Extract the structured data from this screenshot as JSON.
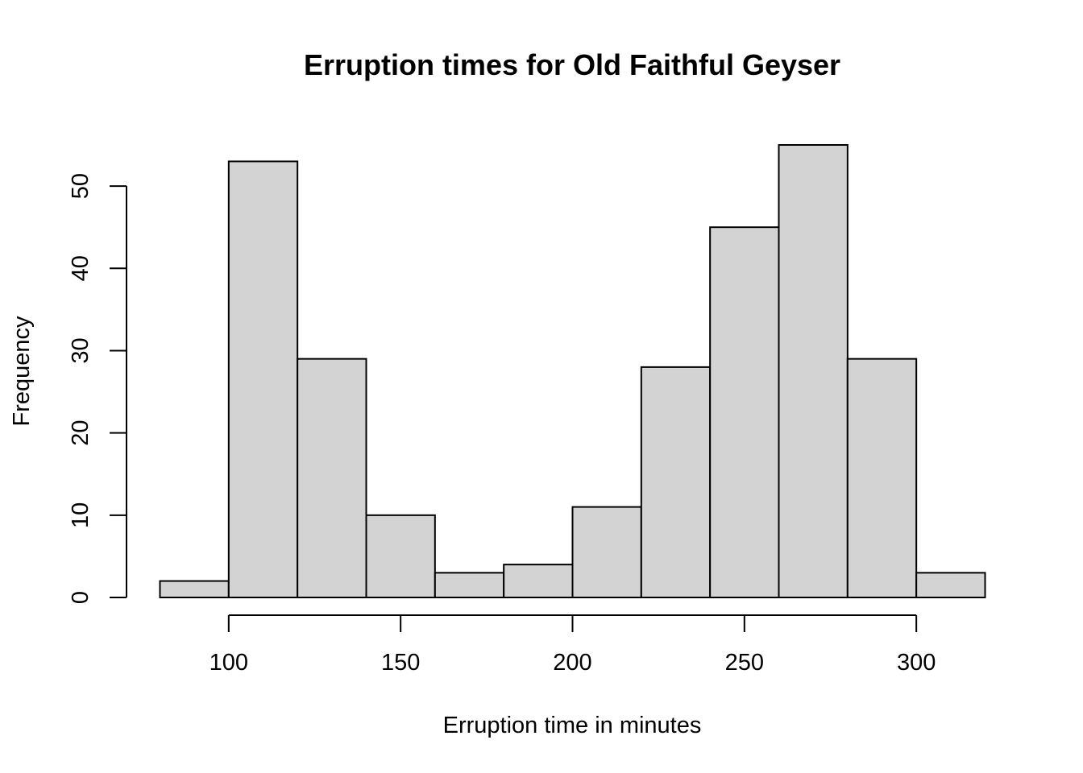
{
  "chart_data": {
    "type": "bar",
    "subtype": "histogram",
    "title": "Erruption times for Old Faithful Geyser",
    "xlabel": "Erruption time in minutes",
    "ylabel": "Frequency",
    "bins": [
      {
        "from": 80,
        "to": 100,
        "count": 2
      },
      {
        "from": 100,
        "to": 120,
        "count": 53
      },
      {
        "from": 120,
        "to": 140,
        "count": 29
      },
      {
        "from": 140,
        "to": 160,
        "count": 10
      },
      {
        "from": 160,
        "to": 180,
        "count": 3
      },
      {
        "from": 180,
        "to": 200,
        "count": 4
      },
      {
        "from": 200,
        "to": 220,
        "count": 11
      },
      {
        "from": 220,
        "to": 240,
        "count": 28
      },
      {
        "from": 240,
        "to": 260,
        "count": 45
      },
      {
        "from": 260,
        "to": 280,
        "count": 55
      },
      {
        "from": 280,
        "to": 300,
        "count": 29
      },
      {
        "from": 300,
        "to": 320,
        "count": 3
      }
    ],
    "x_ticks": [
      100,
      150,
      200,
      250,
      300
    ],
    "y_ticks": [
      0,
      10,
      20,
      30,
      40,
      50
    ],
    "xlim": [
      80,
      320
    ],
    "ylim": [
      0,
      55
    ],
    "grid": false,
    "colors": {
      "bar_fill": "#d3d3d3",
      "bar_stroke": "#000000"
    }
  }
}
